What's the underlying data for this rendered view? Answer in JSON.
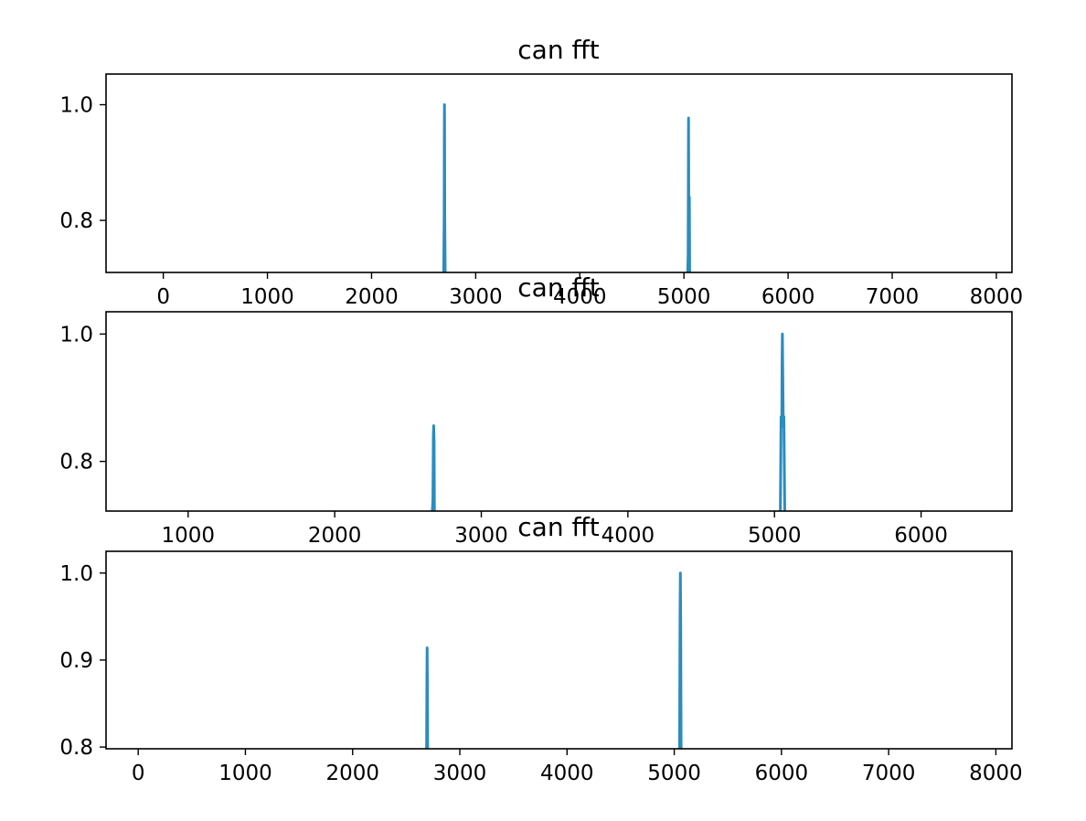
{
  "figure": {
    "line_color": "#2b8cbe",
    "axes_color": "#000000",
    "background": "#ffffff"
  },
  "chart_data": [
    {
      "type": "line",
      "title": "can fft",
      "xlabel": "",
      "ylabel": "",
      "xlim": [
        -550,
        8150
      ],
      "ylim": [
        0.71,
        1.053
      ],
      "grid": false,
      "xticks": [
        0,
        1000,
        2000,
        3000,
        4000,
        5000,
        6000,
        7000,
        8000
      ],
      "yticks": [
        0.8,
        1.0
      ],
      "ytick_labels": [
        "0.8",
        "1.0"
      ],
      "series": [
        {
          "x": [
            2693,
            2697,
            2699,
            2700,
            2701,
            2703,
            2707
          ],
          "y": [
            0.71,
            0.8,
            0.97,
            1.0,
            0.97,
            0.8,
            0.71
          ]
        },
        {
          "x": [
            5036,
            5040,
            5042,
            5044,
            5046,
            5048,
            5050,
            5052,
            5055
          ],
          "y": [
            0.71,
            0.74,
            0.85,
            0.977,
            0.85,
            0.71,
            0.71,
            0.84,
            0.71
          ]
        }
      ]
    },
    {
      "type": "line",
      "title": "can fft",
      "xlabel": "",
      "ylabel": "",
      "xlim": [
        440,
        6620
      ],
      "ylim": [
        0.722,
        1.035
      ],
      "grid": false,
      "xticks": [
        1000,
        2000,
        3000,
        4000,
        5000,
        6000
      ],
      "yticks": [
        0.8,
        1.0
      ],
      "ytick_labels": [
        "0.8",
        "1.0"
      ],
      "series": [
        {
          "x": [
            2666,
            2670,
            2673,
            2675,
            2678,
            2680
          ],
          "y": [
            0.722,
            0.74,
            0.84,
            0.856,
            0.83,
            0.722
          ]
        },
        {
          "x": [
            5040,
            5045,
            5050,
            5052,
            5054,
            5057,
            5060,
            5064,
            5070
          ],
          "y": [
            0.722,
            0.87,
            0.86,
            0.96,
            1.0,
            0.93,
            0.855,
            0.87,
            0.722
          ]
        }
      ]
    },
    {
      "type": "line",
      "title": "can fft",
      "xlabel": "",
      "ylabel": "",
      "xlim": [
        -300,
        8150
      ],
      "ylim": [
        0.798,
        1.025
      ],
      "grid": false,
      "xticks": [
        0,
        1000,
        2000,
        3000,
        4000,
        5000,
        6000,
        7000,
        8000
      ],
      "yticks": [
        0.8,
        0.9,
        1.0
      ],
      "ytick_labels": [
        "0.8",
        "0.9",
        "1.0"
      ],
      "series": [
        {
          "x": [
            2690,
            2693,
            2695,
            2697,
            2700
          ],
          "y": [
            0.798,
            0.88,
            0.914,
            0.88,
            0.798
          ]
        },
        {
          "x": [
            5050,
            5054,
            5057,
            5060,
            5064
          ],
          "y": [
            0.798,
            0.95,
            1.0,
            0.95,
            0.798
          ]
        }
      ]
    }
  ]
}
